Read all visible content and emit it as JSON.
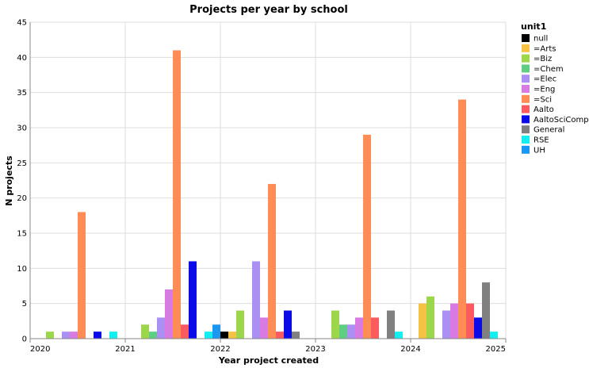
{
  "chart_data": {
    "type": "bar",
    "title": "Projects per year by school",
    "xlabel": "Year project created",
    "ylabel": "N projects",
    "ylim": [
      0,
      45
    ],
    "y_ticks": [
      0,
      5,
      10,
      15,
      20,
      25,
      30,
      35,
      40,
      45
    ],
    "x_tick_labels": [
      "2020",
      "2021",
      "2022",
      "2023",
      "2024",
      "2025"
    ],
    "grid": true,
    "legend_title": "unit1",
    "legend_position": "right",
    "categories": [
      "2020",
      "2021",
      "2022",
      "2023",
      "2024"
    ],
    "series": [
      {
        "name": "null",
        "color": "#000000",
        "values": [
          0,
          0,
          1,
          0,
          0
        ]
      },
      {
        "name": "=Arts",
        "color": "#f6c245",
        "values": [
          0,
          0,
          1,
          0,
          5
        ]
      },
      {
        "name": "=Biz",
        "color": "#9ed64b",
        "values": [
          1,
          2,
          4,
          4,
          6
        ]
      },
      {
        "name": "=Chem",
        "color": "#5fcd82",
        "values": [
          0,
          1,
          0,
          2,
          0
        ]
      },
      {
        "name": "=Elec",
        "color": "#ac8ff3",
        "values": [
          1,
          3,
          11,
          2,
          4
        ]
      },
      {
        "name": "=Eng",
        "color": "#d77ae2",
        "values": [
          1,
          7,
          3,
          3,
          5
        ]
      },
      {
        "name": "=Sci",
        "color": "#ff8c55",
        "values": [
          18,
          41,
          22,
          29,
          34
        ]
      },
      {
        "name": "Aalto",
        "color": "#fb5a5e",
        "values": [
          0,
          2,
          1,
          3,
          5
        ]
      },
      {
        "name": "AaltoSciComp",
        "color": "#0b0be8",
        "values": [
          1,
          11,
          4,
          0,
          3
        ]
      },
      {
        "name": "General",
        "color": "#808080",
        "values": [
          0,
          0,
          1,
          4,
          8
        ]
      },
      {
        "name": "RSE",
        "color": "#13eef0",
        "values": [
          1,
          1,
          0,
          1,
          1
        ]
      },
      {
        "name": "UH",
        "color": "#1a97f0",
        "values": [
          0,
          2,
          0,
          0,
          0
        ]
      }
    ]
  }
}
